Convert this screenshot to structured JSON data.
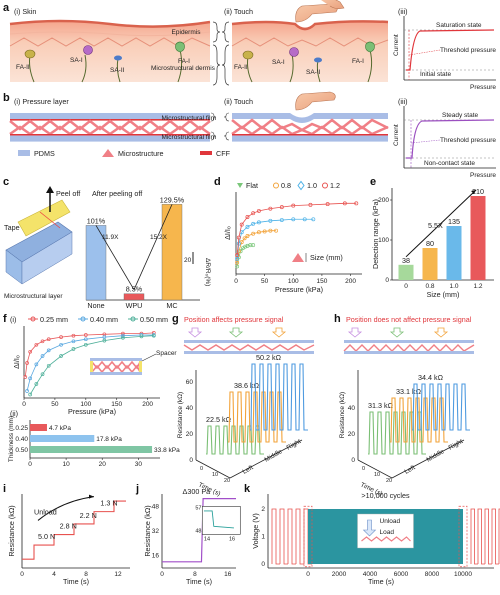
{
  "panel_letters": [
    "a",
    "b",
    "c",
    "d",
    "e",
    "f",
    "g",
    "h",
    "i",
    "j",
    "k"
  ],
  "panel_a": {
    "sub_i": "(i) Skin",
    "sub_ii": "(ii) Touch",
    "sub_iii": "(iii)",
    "brace_labels": [
      "Epidermis",
      "Microstructural dermis"
    ],
    "receptors_left": [
      "FA-II",
      "SA-I",
      "SA-II",
      "FA-I"
    ],
    "receptors_right": [
      "FA-II",
      "SA-I",
      "SA-II",
      "FA-I"
    ],
    "plot": {
      "ylabel": "Current",
      "xlabel": "Pressure",
      "top": "Saturation state",
      "mid": "Threshold pressure",
      "bottom": "Initial state"
    }
  },
  "panel_b": {
    "sub_i": "(i) Pressure layer",
    "sub_ii": "(ii) Touch",
    "sub_iii": "(iii)",
    "brace_labels": [
      "Microstructural film",
      "Microstructural film"
    ],
    "legend": [
      "PDMS",
      "Microstructure",
      "CFF"
    ],
    "plot": {
      "ylabel": "Current",
      "xlabel": "Pressure",
      "top": "Steady state",
      "mid": "Threshold pressure",
      "bottom": "Non-contact state"
    },
    "colors": {
      "pdms": "#a9bde6",
      "micro": "#f07f86",
      "cff": "#e0363b"
    }
  },
  "panel_c": {
    "peel": "Peel off",
    "tape": "Tape",
    "layer": "Microstructural layer",
    "title": "After peeling off",
    "ylabel": "ΔR/R₀(%)",
    "scale": "20",
    "ratios": [
      "11.9X",
      "15.2X"
    ]
  },
  "chart_data": [
    {
      "panel": "c",
      "type": "bar",
      "categories": [
        "None",
        "WPU",
        "MC"
      ],
      "values": [
        101,
        8.5,
        129.5
      ],
      "value_labels": [
        "101%",
        "8.5%",
        "129.5%"
      ],
      "ylabel": "ΔR/R₀(%)"
    },
    {
      "panel": "d",
      "type": "scatter",
      "xlabel": "Pressure (kPa)",
      "ylabel": "ΔI/I₀",
      "xticks": [
        "0",
        "50",
        "100",
        "150",
        "200"
      ],
      "xlim": [
        0,
        220
      ],
      "annotation": "Size (mm)",
      "series": [
        {
          "name": "Flat",
          "color": "#7ac77a",
          "x": [
            2,
            5,
            8,
            12,
            16,
            20,
            25,
            30
          ],
          "y": [
            0.1,
            0.22,
            0.3,
            0.34,
            0.36,
            0.37,
            0.38,
            0.38
          ]
        },
        {
          "name": "0.8",
          "color": "#f2a33a",
          "x": [
            2,
            5,
            10,
            15,
            20,
            30,
            40,
            50,
            60,
            70
          ],
          "y": [
            0.15,
            0.3,
            0.42,
            0.47,
            0.5,
            0.53,
            0.55,
            0.56,
            0.57,
            0.57
          ]
        },
        {
          "name": "1.0",
          "color": "#4fb3e8",
          "x": [
            2,
            5,
            10,
            20,
            30,
            40,
            60,
            80,
            100,
            120,
            135
          ],
          "y": [
            0.2,
            0.4,
            0.55,
            0.62,
            0.66,
            0.68,
            0.7,
            0.71,
            0.72,
            0.72,
            0.72
          ]
        },
        {
          "name": "1.2",
          "color": "#e8524f",
          "x": [
            2,
            5,
            10,
            20,
            30,
            40,
            60,
            80,
            100,
            130,
            160,
            190,
            210
          ],
          "y": [
            0.25,
            0.48,
            0.65,
            0.75,
            0.8,
            0.83,
            0.86,
            0.88,
            0.9,
            0.91,
            0.92,
            0.93,
            0.93
          ]
        }
      ]
    },
    {
      "panel": "e",
      "type": "bar",
      "xlabel": "Size (mm)",
      "ylabel": "Detection range (kPa)",
      "categories": [
        "0",
        "0.8",
        "1.0",
        "1.2"
      ],
      "values": [
        38,
        80,
        135,
        210
      ],
      "value_labels": [
        "38",
        "80",
        "135",
        "210"
      ],
      "colors": [
        "#a6d99b",
        "#f6b64d",
        "#6ab9ea",
        "#e8595b"
      ],
      "annotation": "5.5X"
    },
    {
      "panel": "f(i)",
      "type": "scatter",
      "xlabel": "Pressure (kPa)",
      "ylabel": "ΔI/I₀",
      "xticks": [
        "0",
        "50",
        "100",
        "150",
        "200"
      ],
      "xlim": [
        0,
        220
      ],
      "annotation": "Spacer",
      "series": [
        {
          "name": "0.25 mm",
          "color": "#e8595b",
          "x": [
            2,
            5,
            10,
            20,
            30,
            40,
            60,
            80,
            100,
            130,
            160,
            190,
            210
          ],
          "y": [
            0.3,
            0.5,
            0.66,
            0.76,
            0.81,
            0.84,
            0.87,
            0.89,
            0.9,
            0.91,
            0.92,
            0.92,
            0.93
          ]
        },
        {
          "name": "0.40 mm",
          "color": "#5aa8e0",
          "x": [
            5,
            10,
            20,
            30,
            40,
            60,
            80,
            100,
            130,
            160,
            190,
            210
          ],
          "y": [
            0.1,
            0.28,
            0.48,
            0.6,
            0.68,
            0.76,
            0.81,
            0.84,
            0.87,
            0.89,
            0.9,
            0.9
          ]
        },
        {
          "name": "0.50 mm",
          "color": "#4fb09a",
          "x": [
            10,
            20,
            30,
            40,
            60,
            80,
            100,
            130,
            160,
            190,
            210
          ],
          "y": [
            0.05,
            0.2,
            0.34,
            0.46,
            0.6,
            0.7,
            0.76,
            0.82,
            0.86,
            0.88,
            0.89
          ]
        }
      ]
    },
    {
      "panel": "f(ii)",
      "type": "bar",
      "orientation": "horizontal",
      "xlabel": "",
      "ylabel": "Thickness (mm)",
      "categories": [
        "0.25",
        "0.40",
        "0.50"
      ],
      "values": [
        4.7,
        17.8,
        33.8
      ],
      "value_labels": [
        "4.7 kPa",
        "17.8 kPa",
        "33.8 kPa"
      ],
      "xticks": [
        "0",
        "10",
        "20",
        "30"
      ],
      "colors": [
        "#e8595b",
        "#8ec3ee",
        "#7fc6a4"
      ]
    },
    {
      "panel": "i",
      "type": "line",
      "xlabel": "Time (s)",
      "ylabel": "Resistance (kΩ)",
      "xticks": [
        "0",
        "4",
        "8",
        "12"
      ],
      "x": [
        0,
        1.5,
        1.5,
        4,
        4,
        6.5,
        6.5,
        9,
        9,
        11.5,
        11.5,
        13
      ],
      "y": [
        1,
        1,
        2.6,
        2.6,
        3.8,
        3.8,
        5.0,
        5.0,
        6.4,
        6.4,
        7.6,
        7.6
      ],
      "step_labels": [
        "5.0 N",
        "2.8 N",
        "2.2 N",
        "1.3 N"
      ],
      "annotation": "Unload"
    },
    {
      "panel": "j",
      "type": "line",
      "xlabel": "Time (s)",
      "ylabel": "Resistance (kΩ)",
      "xticks": [
        "0",
        "8",
        "16"
      ],
      "yticks": [
        "16",
        "32",
        "48"
      ],
      "annotation": "Δ300 Pa",
      "inset_y": [
        "57",
        "48"
      ],
      "inset_x": [
        "14",
        "16"
      ]
    },
    {
      "panel": "k",
      "type": "line",
      "xlabel": "Time (s)",
      "ylabel": "Voltage (V)",
      "xticks": [
        "0",
        "2000",
        "4000",
        "6000",
        "8000",
        "10000"
      ],
      "yticks": [
        "0",
        "1",
        "2"
      ],
      "annotation": ">10,000 cycles",
      "legend": [
        "Unload",
        "Load"
      ]
    }
  ],
  "panel_d": {
    "size_label": "Size (mm)",
    "legend": [
      "Flat",
      "0.8",
      "1.0",
      "1.2"
    ]
  },
  "panel_e": {
    "ticks_y": [
      "0",
      "100",
      "200"
    ]
  },
  "panel_f": {
    "sub_i": "(i)",
    "sub_ii": "(ii)",
    "legend": [
      "0.25 mm",
      "0.40 mm",
      "0.50 mm"
    ]
  },
  "panel_g": {
    "title": "Position affects pressure signal",
    "values": [
      "22.5 kΩ",
      "38.6 kΩ",
      "50.2 kΩ"
    ],
    "ylabel": "Resistance (kΩ)",
    "xlabel": "Time (s)",
    "axis_positions": [
      "Left",
      "Middle",
      "Right"
    ],
    "yticks": [
      "0",
      "20",
      "40",
      "60"
    ],
    "xticks": [
      "0",
      "10",
      "20"
    ]
  },
  "panel_h": {
    "title": "Position does not affect pressure signal",
    "values": [
      "31.3 kΩ",
      "33.1 kΩ",
      "34.4 kΩ"
    ],
    "ylabel": "Resistance (kΩ)",
    "xlabel": "Time (s)",
    "axis_positions": [
      "Left",
      "Middle",
      "Right"
    ],
    "yticks": [
      "0",
      "20",
      "40"
    ],
    "xticks": [
      "0",
      "10",
      "20"
    ]
  }
}
